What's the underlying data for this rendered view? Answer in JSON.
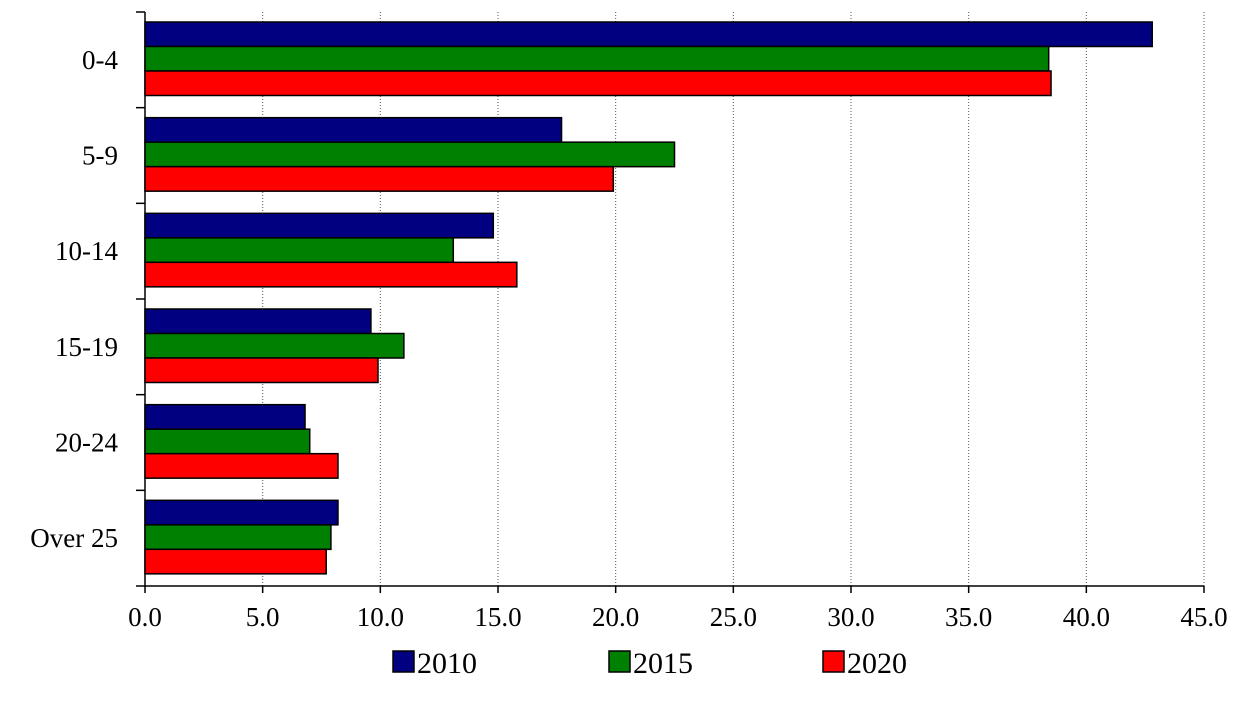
{
  "chart_data": {
    "type": "bar",
    "orientation": "horizontal",
    "categories": [
      "0-4",
      "5-9",
      "10-14",
      "15-19",
      "20-24",
      "Over 25"
    ],
    "series": [
      {
        "name": "2010",
        "color": "#000080",
        "values": [
          42.8,
          17.7,
          14.8,
          9.6,
          6.8,
          8.2
        ]
      },
      {
        "name": "2015",
        "color": "#008000",
        "values": [
          38.4,
          22.5,
          13.1,
          11.0,
          7.0,
          7.9
        ]
      },
      {
        "name": "2020",
        "color": "#ff0000",
        "values": [
          38.5,
          19.9,
          15.8,
          9.9,
          8.2,
          7.7
        ]
      }
    ],
    "x_ticks": [
      "0.0",
      "5.0",
      "10.0",
      "15.0",
      "20.0",
      "25.0",
      "30.0",
      "35.0",
      "40.0",
      "45.0"
    ],
    "xlim": [
      0,
      45
    ],
    "title": "",
    "xlabel": "",
    "ylabel": "",
    "grid": "vertical dotted",
    "legend_position": "bottom-center"
  }
}
